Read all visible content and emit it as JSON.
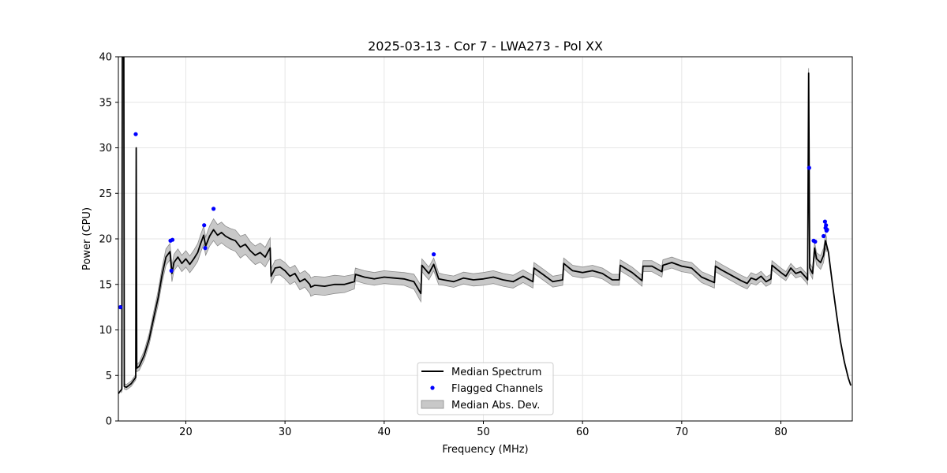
{
  "chart_data": {
    "type": "line",
    "title": "2025-03-13 - Cor 7 - LWA273 - Pol XX",
    "xlabel": "Frequency (MHz)",
    "ylabel": "Power (CPU)",
    "xlim": [
      13.2,
      87.2
    ],
    "ylim": [
      0,
      40
    ],
    "xticks": [
      20,
      30,
      40,
      50,
      60,
      70,
      80
    ],
    "yticks": [
      0,
      5,
      10,
      15,
      20,
      25,
      30,
      35,
      40
    ],
    "grid": true,
    "legend_position": "bottom-center",
    "legend": [
      "Median Spectrum",
      "Flagged Channels",
      "Median Abs. Dev."
    ],
    "colors": {
      "median": "#000000",
      "flagged": "#0000ff",
      "band": "#c8c8c8",
      "band_edge": "#8c8c8c",
      "grid": "#e6e6e6"
    },
    "median_spectrum": {
      "x": [
        13.2,
        13.4,
        13.55,
        13.6,
        13.75,
        13.8,
        14.0,
        14.5,
        14.95,
        15.0,
        15.05,
        15.3,
        15.8,
        16.3,
        16.8,
        17.2,
        17.6,
        18.0,
        18.4,
        18.6,
        18.8,
        19.2,
        19.6,
        20.0,
        20.4,
        20.8,
        21.2,
        21.5,
        21.8,
        22.0,
        22.4,
        22.8,
        23.2,
        23.6,
        24.0,
        24.5,
        25.0,
        25.5,
        26.0,
        26.5,
        27.0,
        27.5,
        28.0,
        28.5,
        28.6,
        29.0,
        29.5,
        30.0,
        30.5,
        31.0,
        31.5,
        32.0,
        32.5,
        32.6,
        33.0,
        34.0,
        35.0,
        36.0,
        37.0,
        37.1,
        38.0,
        39.0,
        40.0,
        41.0,
        42.0,
        43.0,
        43.7,
        43.8,
        44.5,
        45.0,
        45.5,
        46.0,
        47.0,
        48.0,
        49.0,
        50.0,
        51.0,
        52.0,
        53.0,
        54.0,
        55.0,
        55.1,
        56.0,
        57.0,
        58.0,
        58.1,
        59.0,
        60.0,
        61.0,
        62.0,
        63.0,
        63.7,
        63.8,
        65.0,
        66.0,
        66.1,
        67.0,
        68.0,
        68.1,
        69.0,
        70.0,
        71.0,
        72.0,
        73.3,
        73.4,
        74.0,
        75.0,
        76.0,
        76.6,
        77.0,
        77.5,
        78.0,
        78.5,
        79.0,
        79.1,
        80.0,
        80.5,
        81.0,
        81.5,
        82.0,
        82.5,
        82.7,
        82.8,
        82.9,
        83.2,
        83.4,
        83.6,
        84.0,
        84.3,
        84.5,
        84.8,
        85.2,
        85.6,
        86.0,
        86.4,
        86.8,
        87.05
      ],
      "y": [
        3.0,
        3.3,
        3.5,
        40,
        40,
        3.8,
        3.7,
        4.1,
        4.8,
        30.0,
        5.8,
        6.0,
        7.2,
        9.0,
        11.5,
        13.5,
        16.0,
        18.0,
        18.6,
        16.2,
        17.4,
        18.0,
        17.3,
        17.8,
        17.2,
        17.8,
        18.5,
        19.5,
        20.4,
        19.2,
        20.3,
        21.0,
        20.4,
        20.7,
        20.3,
        20.0,
        19.8,
        19.1,
        19.4,
        18.7,
        18.2,
        18.5,
        18.0,
        19.0,
        15.9,
        16.8,
        16.9,
        16.5,
        15.9,
        16.2,
        15.3,
        15.6,
        15.0,
        14.7,
        14.9,
        14.8,
        15.0,
        15.0,
        15.3,
        16.1,
        15.8,
        15.6,
        15.8,
        15.7,
        15.6,
        15.3,
        14.0,
        17.1,
        16.2,
        17.2,
        15.6,
        15.5,
        15.3,
        15.7,
        15.5,
        15.6,
        15.8,
        15.5,
        15.3,
        15.9,
        15.3,
        16.8,
        16.1,
        15.3,
        15.5,
        17.3,
        16.5,
        16.3,
        16.5,
        16.2,
        15.5,
        15.5,
        17.1,
        16.3,
        15.4,
        17.0,
        17.0,
        16.4,
        17.1,
        17.4,
        17.0,
        16.8,
        15.8,
        15.2,
        17.0,
        16.6,
        16.0,
        15.4,
        15.1,
        15.7,
        15.5,
        15.9,
        15.3,
        15.6,
        17.1,
        16.3,
        15.9,
        16.8,
        16.2,
        16.4,
        15.8,
        15.5,
        38.2,
        16.8,
        16.2,
        19.0,
        17.8,
        17.4,
        18.2,
        19.8,
        18.5,
        15.0,
        11.8,
        8.8,
        6.5,
        4.7,
        3.9
      ]
    },
    "flagged_channels": {
      "x": [
        13.4,
        14.95,
        18.45,
        18.55,
        18.65,
        21.85,
        21.95,
        22.8,
        45.0,
        82.85,
        83.3,
        83.45,
        84.3,
        84.45,
        84.5,
        84.55,
        84.6,
        84.65
      ],
      "y": [
        12.5,
        31.5,
        19.8,
        16.5,
        19.9,
        21.5,
        19.0,
        23.3,
        18.3,
        27.8,
        19.8,
        19.7,
        20.3,
        21.9,
        21.2,
        21.5,
        20.9,
        21.0
      ]
    },
    "median_abs_dev": {
      "x": [
        13.5,
        14.95,
        15.0,
        15.05,
        18.0,
        20.0,
        22.0,
        22.8,
        24.0,
        25.5,
        26.5,
        28.5,
        28.6,
        30.0,
        32.0,
        32.6,
        35.0,
        37.0,
        37.1,
        40.0,
        42.0,
        43.7,
        43.8,
        45.0,
        46.0,
        50.0,
        55.0,
        55.1,
        58.0,
        58.1,
        63.7,
        63.8,
        66.0,
        66.1,
        68.0,
        68.1,
        70.0,
        73.3,
        73.4,
        76.6,
        79.0,
        79.1,
        82.5,
        83.2,
        84.3,
        84.6
      ],
      "dev": [
        0.3,
        0.3,
        0.0,
        0.4,
        0.9,
        0.9,
        1.0,
        1.2,
        1.1,
        1.2,
        1.0,
        1.1,
        0.8,
        0.9,
        0.9,
        1.0,
        1.0,
        0.8,
        0.7,
        0.7,
        0.7,
        0.9,
        0.7,
        0.7,
        0.6,
        0.7,
        0.7,
        0.6,
        0.6,
        0.6,
        0.6,
        0.6,
        0.6,
        0.6,
        0.6,
        0.6,
        0.6,
        0.6,
        0.6,
        0.6,
        0.5,
        0.5,
        0.5,
        0.6,
        0.8,
        0.8
      ]
    }
  }
}
